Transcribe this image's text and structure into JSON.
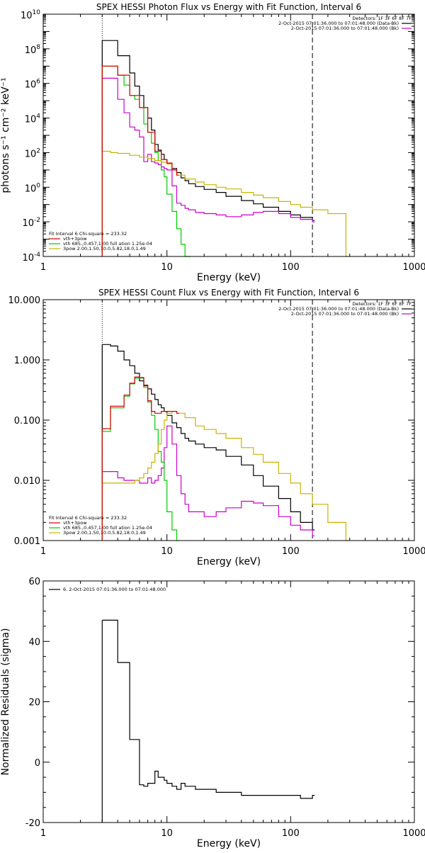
{
  "chart_data": [
    {
      "type": "line",
      "title": "SPEX HESSI Photon Flux vs Energy with Fit Function, Interval 6",
      "xlabel": "Energy (keV)",
      "ylabel": "photons s⁻¹ cm⁻² keV⁻¹",
      "xscale": "log",
      "yscale": "log",
      "xlim": [
        1,
        1000
      ],
      "ylim": [
        0.0001,
        10000000000
      ],
      "xticks": [
        {
          "v": 1,
          "label": "1"
        },
        {
          "v": 10,
          "label": "10"
        },
        {
          "v": 100,
          "label": "100"
        },
        {
          "v": 1000,
          "label": "1000"
        }
      ],
      "yticks": [
        {
          "v": 0.0001,
          "b": "10",
          "e": "-4"
        },
        {
          "v": 0.01,
          "b": "10",
          "e": "-2"
        },
        {
          "v": 1,
          "b": "10",
          "e": "0"
        },
        {
          "v": 100,
          "b": "10",
          "e": "2"
        },
        {
          "v": 10000,
          "b": "10",
          "e": "4"
        },
        {
          "v": 1000000,
          "b": "10",
          "e": "6"
        },
        {
          "v": 100000000,
          "b": "10",
          "e": "8"
        },
        {
          "v": 10000000000,
          "b": "10",
          "e": "10"
        }
      ],
      "vlines": [
        {
          "x": 3,
          "style": "dotted"
        },
        {
          "x": 150,
          "style": "dashed"
        }
      ],
      "header_right": [
        "Detectors: 1F 3F 6F 8F 7F",
        "2-Oct-2015 07:01:36.000 to 07:01:48.000 (Data-Bk)",
        "2-Oct-2015 07:01:36.000 to 07:01:48.000 (Bk)"
      ],
      "legend": {
        "title": "Fit Interval  6   Chi-square = 233.32",
        "entries": [
          {
            "label": "vth+3pow",
            "color": "#d40000"
          },
          {
            "label": "vth 685.,0.457,1.00  full ation 1.25e-04",
            "color": "#00cc00"
          },
          {
            "label": "3pow 2.00,1.50,10.0,5.82,18.0,1.49",
            "color": "#c8b400"
          }
        ]
      },
      "series": [
        {
          "name": "2-Oct-2015 07:01:36.000 to 07:01:48.000 (Data-Bk)",
          "color": "#000000",
          "x": [
            3,
            3.5,
            4,
            4.5,
            5,
            5.5,
            6,
            6.5,
            7,
            7.5,
            8,
            8.5,
            9,
            9.5,
            10,
            11,
            12,
            13,
            14,
            15,
            17,
            20,
            25,
            30,
            40,
            50,
            60,
            80,
            100,
            120,
            150
          ],
          "y": [
            300000000,
            300000000,
            40000000,
            40000000,
            4000000,
            700000,
            200000,
            40000,
            10000,
            2000,
            300,
            140,
            80,
            40,
            25,
            12,
            7,
            3.5,
            2.4,
            1.6,
            1.1,
            0.75,
            0.5,
            0.3,
            0.17,
            0.11,
            0.07,
            0.04,
            0.025,
            0.018,
            0.012
          ]
        },
        {
          "name": "2-Oct-2015 07:01:36.000 to 07:01:48.000 (Bk)",
          "color": "#cc00cc",
          "x": [
            3,
            3.5,
            4,
            4.5,
            5,
            5.5,
            6,
            6.5,
            7,
            7.5,
            8,
            8.5,
            9,
            9.5,
            10,
            11,
            12,
            13,
            14,
            15,
            17,
            20,
            25,
            30,
            40,
            50,
            60,
            80,
            100,
            120,
            150
          ],
          "y": [
            2000000,
            2000000,
            120000,
            20000,
            3000,
            2000,
            800,
            30,
            80,
            30,
            25,
            20,
            15,
            12,
            10,
            1.2,
            0.12,
            0.09,
            0.06,
            0.05,
            0.035,
            0.03,
            0.025,
            0.02,
            0.025,
            0.035,
            0.04,
            0.03,
            0.018,
            0.014,
            0.01
          ]
        },
        {
          "name": "vth",
          "color": "#00cc00",
          "x": [
            3,
            3.5,
            4,
            4.5,
            5,
            5.5,
            6,
            6.5,
            7,
            7.5,
            8,
            8.5,
            9,
            9.5,
            10,
            11,
            12,
            13,
            14,
            15
          ],
          "y": [
            10000000,
            10000000,
            3000000,
            800000,
            200000,
            120000,
            40000,
            4500,
            1500,
            350,
            100,
            35,
            10,
            4,
            0.4,
            0.04,
            0.004,
            0.0005,
            0.0001,
            0.0001
          ]
        },
        {
          "name": "3pow",
          "color": "#c8b400",
          "x": [
            3,
            3.5,
            4,
            5,
            6,
            7,
            8,
            9,
            10,
            11,
            12,
            14,
            17,
            20,
            25,
            30,
            40,
            50,
            60,
            80,
            100,
            120,
            150,
            200,
            280
          ],
          "y": [
            120,
            100,
            90,
            70,
            55,
            45,
            35,
            28,
            22,
            10,
            5,
            3,
            2,
            1.4,
            1,
            0.8,
            0.5,
            0.35,
            0.25,
            0.15,
            0.1,
            0.07,
            0.05,
            0.03,
            0.0001
          ]
        },
        {
          "name": "vth+3pow",
          "color": "#d40000",
          "x": [
            3,
            4,
            5,
            6,
            7,
            8,
            9,
            10,
            11,
            12
          ],
          "y": [
            10000000,
            3000000,
            200000,
            40000,
            1500,
            120,
            40,
            25,
            10,
            5
          ]
        }
      ]
    },
    {
      "type": "line",
      "title": "SPEX HESSI Count Flux vs Energy with Fit Function, Interval 6",
      "xlabel": "Energy (keV)",
      "ylabel": "",
      "xscale": "log",
      "yscale": "log",
      "xlim": [
        1,
        1000
      ],
      "ylim": [
        0.001,
        10
      ],
      "xticks": [
        {
          "v": 1,
          "label": "1"
        },
        {
          "v": 10,
          "label": "10"
        },
        {
          "v": 100,
          "label": "100"
        },
        {
          "v": 1000,
          "label": "1000"
        }
      ],
      "yticks": [
        {
          "v": 0.001,
          "label": "0.001"
        },
        {
          "v": 0.01,
          "label": "0.010"
        },
        {
          "v": 0.1,
          "label": "0.100"
        },
        {
          "v": 1,
          "label": "1.000"
        },
        {
          "v": 10,
          "label": "10.000"
        }
      ],
      "vlines": [
        {
          "x": 3,
          "style": "dotted"
        },
        {
          "x": 150,
          "style": "dashed"
        }
      ],
      "header_right": [
        "Detectors: 1F 3F 6F 8F 7F",
        "2-Oct-2015 07:01:36.000 to 07:01:48.000 (Data-Bk)",
        "2-Oct-2015 07:01:36.000 to 07:01:48.000 (Bk)"
      ],
      "legend": {
        "title": "Fit Interval  6   Chi-square = 233.32",
        "entries": [
          {
            "label": "vth+3pow",
            "color": "#d40000"
          },
          {
            "label": "vth 685.,0.457,1.00  full ation 1.25e-04",
            "color": "#00cc00"
          },
          {
            "label": "3pow 2.00,1.50,10.0,5.82,18.0,1.49",
            "color": "#c8b400"
          }
        ]
      },
      "series": [
        {
          "name": "2-Oct-2015 07:01:36.000 to 07:01:48.000 (Data-Bk)",
          "color": "#000000",
          "x": [
            3,
            3.5,
            4,
            4.5,
            5,
            5.5,
            6,
            6.5,
            7,
            7.5,
            8,
            8.5,
            9,
            9.5,
            10,
            11,
            12,
            13,
            14,
            15,
            17,
            20,
            25,
            30,
            40,
            50,
            60,
            80,
            100,
            120,
            150
          ],
          "y": [
            1.8,
            1.7,
            1.4,
            1.0,
            0.8,
            0.6,
            0.45,
            0.38,
            0.33,
            0.27,
            0.22,
            0.18,
            0.16,
            0.14,
            0.12,
            0.09,
            0.075,
            0.06,
            0.05,
            0.045,
            0.04,
            0.035,
            0.032,
            0.025,
            0.018,
            0.012,
            0.008,
            0.005,
            0.003,
            0.002,
            0.0015
          ]
        },
        {
          "name": "2-Oct-2015 07:01:36.000 to 07:01:48.000 (Bk)",
          "color": "#cc00cc",
          "x": [
            3,
            3.5,
            4,
            4.5,
            5,
            5.5,
            6,
            6.5,
            7,
            7.5,
            8,
            8.5,
            9,
            9.5,
            10,
            11,
            12,
            13,
            14,
            15,
            17,
            20,
            25,
            30,
            40,
            50,
            60,
            80,
            100,
            120,
            150
          ],
          "y": [
            0.014,
            0.014,
            0.011,
            0.01,
            0.01,
            0.01,
            0.009,
            0.009,
            0.011,
            0.009,
            0.01,
            0.012,
            0.016,
            0.035,
            0.08,
            0.04,
            0.012,
            0.006,
            0.004,
            0.003,
            0.003,
            0.0025,
            0.003,
            0.0035,
            0.0045,
            0.0042,
            0.0038,
            0.0025,
            0.0018,
            0.0015,
            0.0012
          ]
        },
        {
          "name": "vth",
          "color": "#00cc00",
          "x": [
            3,
            3.5,
            4,
            4.5,
            5,
            5.5,
            6,
            6.5,
            7,
            7.5,
            8,
            8.5,
            9,
            9.5,
            10,
            11,
            12
          ],
          "y": [
            0.065,
            0.16,
            0.16,
            0.25,
            0.4,
            0.5,
            0.5,
            0.35,
            0.2,
            0.12,
            0.07,
            0.03,
            0.02,
            0.01,
            0.003,
            0.0015,
            0.001
          ]
        },
        {
          "name": "3pow",
          "color": "#c8b400",
          "x": [
            3,
            3.5,
            4,
            4.5,
            5,
            5.5,
            6,
            6.5,
            7,
            7.5,
            8,
            8.5,
            9,
            9.5,
            10,
            11,
            12,
            14,
            17,
            20,
            25,
            30,
            40,
            50,
            60,
            80,
            100,
            120,
            150,
            200,
            280
          ],
          "y": [
            0.009,
            0.009,
            0.009,
            0.009,
            0.009,
            0.01,
            0.011,
            0.013,
            0.016,
            0.02,
            0.028,
            0.04,
            0.07,
            0.1,
            0.13,
            0.14,
            0.13,
            0.11,
            0.08,
            0.07,
            0.06,
            0.05,
            0.035,
            0.027,
            0.02,
            0.013,
            0.009,
            0.006,
            0.004,
            0.002,
            0.001
          ]
        },
        {
          "name": "vth+3pow",
          "color": "#d40000",
          "x": [
            3,
            3.5,
            4,
            4.5,
            5,
            5.5,
            6,
            6.5,
            7,
            7.5,
            8,
            8.5,
            9,
            9.5,
            10,
            11,
            12
          ],
          "y": [
            0.072,
            0.17,
            0.17,
            0.26,
            0.41,
            0.52,
            0.51,
            0.37,
            0.21,
            0.14,
            0.13,
            0.13,
            0.14,
            0.14,
            0.14,
            0.14,
            0.13
          ]
        }
      ]
    },
    {
      "type": "line",
      "title": "",
      "xlabel": "Energy (keV)",
      "ylabel": "Normalized Residuals (sigma)",
      "xscale": "log",
      "yscale": "linear",
      "xlim": [
        1,
        1000
      ],
      "ylim": [
        -20,
        60
      ],
      "xticks": [
        {
          "v": 1,
          "label": "1"
        },
        {
          "v": 10,
          "label": "10"
        },
        {
          "v": 100,
          "label": "100"
        },
        {
          "v": 1000,
          "label": "1000"
        }
      ],
      "yticks": [
        {
          "v": -20,
          "label": "-20"
        },
        {
          "v": 0,
          "label": "0"
        },
        {
          "v": 20,
          "label": "20"
        },
        {
          "v": 40,
          "label": "40"
        },
        {
          "v": 60,
          "label": "60"
        }
      ],
      "legend": {
        "title": "",
        "entries": [
          {
            "label": "6.  2-Oct-2015 07:01:36.000 to 07:01:48.000",
            "color": "#000000"
          }
        ]
      },
      "series": [
        {
          "name": "6.  2-Oct-2015 07:01:36.000 to 07:01:48.000",
          "color": "#000000",
          "x": [
            3,
            3.5,
            4,
            4.5,
            5,
            5.5,
            6,
            6.5,
            7,
            7.5,
            8,
            8.5,
            9,
            9.5,
            10,
            11,
            12,
            13,
            14,
            15,
            17,
            20,
            25,
            30,
            40,
            50,
            60,
            80,
            100,
            120,
            150
          ],
          "y": [
            47,
            47,
            33,
            33,
            7.5,
            7.5,
            -7.5,
            -8,
            -7,
            -7,
            -3,
            -5,
            -5,
            -6,
            -7,
            -8,
            -9,
            -7,
            -8,
            -8,
            -9,
            -9,
            -10,
            -10,
            -11,
            -11,
            -11,
            -11,
            -11,
            -12,
            -11
          ]
        }
      ]
    }
  ]
}
